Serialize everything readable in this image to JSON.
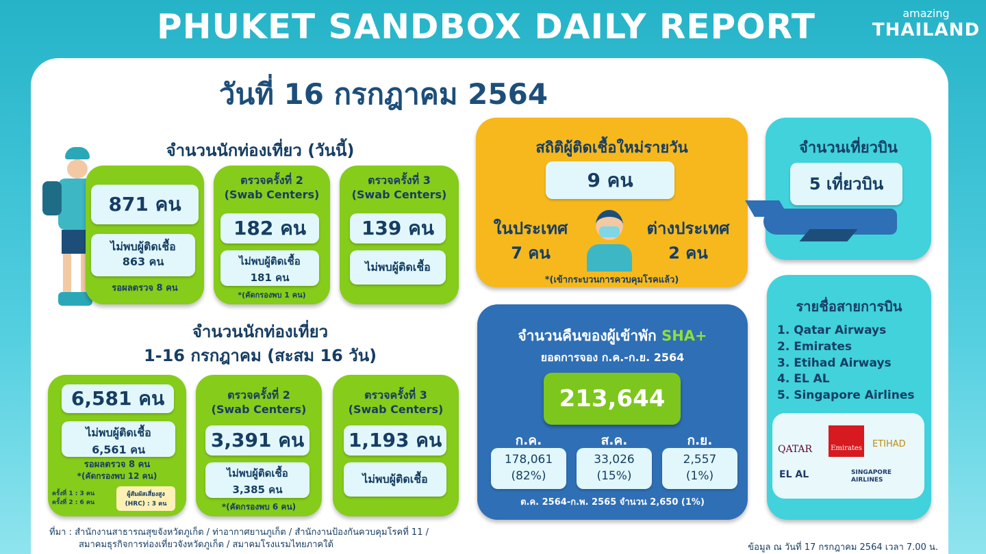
{
  "header": {
    "title": "PHUKET SANDBOX DAILY REPORT",
    "logo_small": "amazing",
    "logo_big": "THAILAND",
    "date": "วันที่ 16 กรกฎาคม 2564"
  },
  "today": {
    "title": "จำนวนนักท่องเที่ยว (วันนี้)",
    "box1": {
      "count": "871 คน",
      "neg_label": "ไม่พบผู้ติดเชื้อ",
      "neg": "863 คน",
      "pending": "รอผลตรวจ 8 คน"
    },
    "box2": {
      "label": "ตรวจครั้งที่ 2",
      "sub": "(Swab Centers)",
      "count": "182 คน",
      "neg_label": "ไม่พบผู้ติดเชื้อ",
      "neg": "181 คน",
      "note": "*(คัดกรองพบ 1 คน)"
    },
    "box3": {
      "label": "ตรวจครั้งที่ 3",
      "sub": "(Swab Centers)",
      "count": "139 คน",
      "neg_label": "ไม่พบผู้ติดเชื้อ"
    }
  },
  "cumulative": {
    "title1": "จำนวนนักท่องเที่ยว",
    "title2": "1-16 กรกฎาคม (สะสม 16 วัน)",
    "box1": {
      "count": "6,581 คน",
      "neg_label": "ไม่พบผู้ติดเชื้อ",
      "neg": "6,561 คน",
      "pending": "รอผลตรวจ 8 คน",
      "note": "*(คัดกรองพบ 12 คน)",
      "round1": "ครั้งที่ 1 :  3 คน",
      "round2": "ครั้งที่ 2 : 6 คน",
      "hrc1": "ผู้สัมผัสเสี่ยงสูง",
      "hrc2": "(HRC) : 3 คน"
    },
    "box2": {
      "label": "ตรวจครั้งที่ 2",
      "sub": "(Swab Centers)",
      "count": "3,391 คน",
      "neg_label": "ไม่พบผู้ติดเชื้อ",
      "neg": "3,385 คน",
      "note": "*(คัดกรองพบ 6 คน)"
    },
    "box3": {
      "label": "ตรวจครั้งที่ 3",
      "sub": "(Swab Centers)",
      "count": "1,193 คน",
      "neg_label": "ไม่พบผู้ติดเชื้อ"
    }
  },
  "infection": {
    "title": "สถิติผู้ติดเชื้อใหม่รายวัน",
    "total": "9 คน",
    "domestic_label": "ในประเทศ",
    "domestic": "7 คน",
    "foreign_label": "ต่างประเทศ",
    "foreign": "2 คน",
    "note": "*(เข้ากระบวนการควบคุมโรคแล้ว)"
  },
  "flights": {
    "title": "จำนวนเที่ยวบิน",
    "count": "5 เที่ยวบิน"
  },
  "sha": {
    "title": "จำนวนคืนของผู้เข้าพัก",
    "title_accent": "SHA+",
    "subtitle": "ยอดการจอง ก.ค.-ก.ย. 2564",
    "total": "213,644",
    "months": [
      {
        "label": "ก.ค.",
        "value": "178,061",
        "pct": "(82%)"
      },
      {
        "label": "ส.ค.",
        "value": "33,026",
        "pct": "(15%)"
      },
      {
        "label": "ก.ย.",
        "value": "2,557",
        "pct": "(1%)"
      }
    ],
    "footer": "ต.ค. 2564-ก.พ. 2565 จำนวน 2,650 (1%)",
    "accent_color": "#8ee03a"
  },
  "airlines": {
    "title": "รายชื่อสายการบิน",
    "items": [
      "1. Qatar Airways",
      "2. Emirates",
      "3. Etihad Airways",
      "4. EL AL",
      "5. Singapore Airlines"
    ],
    "logos": [
      "QATAR",
      "Emirates",
      "ETIHAD",
      "EL AL",
      "SINGAPORE AIRLINES"
    ]
  },
  "footer": {
    "source1": "ที่มา : สำนักงานสาธารณสุขจังหวัดภูเก็ต / ท่าอากาศยานภูเก็ต / สำนักงานป้องกันควบคุมโรคที่ 11 /",
    "source2": "สมาคมธุรกิจการท่องเที่ยวจังหวัดภูเก็ต / สมาคมโรงแรมไทยภาคใต้",
    "as_of": "ข้อมูล ณ วันที่ 17 กรกฎาคม 2564 เวลา 7.00 น."
  }
}
